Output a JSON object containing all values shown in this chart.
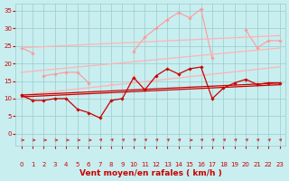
{
  "x": [
    0,
    1,
    2,
    3,
    4,
    5,
    6,
    7,
    8,
    9,
    10,
    11,
    12,
    13,
    14,
    15,
    16,
    17,
    18,
    19,
    20,
    21,
    22,
    23
  ],
  "series": [
    {
      "name": "light_drop",
      "color": "#FF9999",
      "lw": 0.8,
      "marker": "D",
      "markersize": 1.8,
      "y": [
        24.5,
        23.0,
        null,
        null,
        null,
        null,
        null,
        null,
        null,
        null,
        null,
        null,
        null,
        null,
        null,
        null,
        null,
        null,
        null,
        null,
        null,
        null,
        null,
        null
      ]
    },
    {
      "name": "light_rafales",
      "color": "#FF9999",
      "lw": 0.8,
      "marker": "D",
      "markersize": 1.8,
      "y": [
        null,
        null,
        16.5,
        17.0,
        17.5,
        17.5,
        14.5,
        null,
        null,
        null,
        23.5,
        27.5,
        30.0,
        32.5,
        34.5,
        33.0,
        35.5,
        21.5,
        null,
        null,
        29.5,
        24.5,
        26.5,
        26.5
      ]
    },
    {
      "name": "light_moyen",
      "color": "#FFB3B3",
      "lw": 0.8,
      "marker": "D",
      "markersize": 1.8,
      "y": [
        null,
        null,
        null,
        null,
        null,
        null,
        null,
        null,
        14.0,
        null,
        16.5,
        null,
        null,
        null,
        null,
        null,
        null,
        null,
        null,
        null,
        null,
        null,
        null,
        null
      ]
    },
    {
      "name": "trend_upper_light",
      "color": "#FFB3B3",
      "lw": 0.9,
      "marker": null,
      "markersize": 0,
      "y": [
        24.5,
        24.65,
        24.8,
        24.95,
        25.1,
        25.25,
        25.4,
        25.55,
        25.7,
        25.85,
        26.0,
        26.15,
        26.3,
        26.45,
        26.6,
        26.75,
        26.9,
        27.05,
        27.2,
        27.35,
        27.5,
        27.65,
        27.8,
        27.95
      ]
    },
    {
      "name": "trend_lower_light",
      "color": "#FFB3B3",
      "lw": 0.9,
      "marker": null,
      "markersize": 0,
      "y": [
        11.0,
        11.35,
        11.7,
        12.05,
        12.4,
        12.75,
        13.1,
        13.45,
        13.8,
        14.15,
        14.5,
        14.85,
        15.2,
        15.55,
        15.9,
        16.25,
        16.6,
        16.95,
        17.3,
        17.65,
        18.0,
        18.35,
        18.7,
        19.05
      ]
    },
    {
      "name": "trend_mid_light",
      "color": "#FFB3B3",
      "lw": 0.9,
      "marker": null,
      "markersize": 0,
      "y": [
        17.5,
        17.8,
        18.1,
        18.4,
        18.7,
        19.0,
        19.3,
        19.6,
        19.9,
        20.2,
        20.5,
        20.8,
        21.1,
        21.4,
        21.7,
        22.0,
        22.3,
        22.6,
        22.9,
        23.2,
        23.5,
        23.8,
        24.1,
        24.4
      ]
    },
    {
      "name": "dark_moyen",
      "color": "#CC0000",
      "lw": 0.9,
      "marker": "D",
      "markersize": 1.8,
      "y": [
        11.0,
        9.5,
        9.5,
        10.0,
        10.0,
        7.0,
        6.0,
        4.5,
        9.5,
        10.0,
        16.0,
        12.5,
        16.5,
        18.5,
        17.0,
        18.5,
        19.0,
        10.0,
        13.0,
        14.5,
        15.5,
        14.0,
        14.5,
        14.5
      ]
    },
    {
      "name": "trend_dark1",
      "color": "#CC0000",
      "lw": 0.9,
      "marker": null,
      "markersize": 0,
      "y": [
        11.0,
        11.15,
        11.3,
        11.45,
        11.6,
        11.75,
        11.9,
        12.05,
        12.2,
        12.35,
        12.5,
        12.65,
        12.8,
        12.95,
        13.1,
        13.25,
        13.4,
        13.55,
        13.7,
        13.85,
        14.0,
        14.15,
        14.3,
        14.45
      ]
    },
    {
      "name": "trend_dark2",
      "color": "#CC0000",
      "lw": 0.9,
      "marker": null,
      "markersize": 0,
      "y": [
        10.5,
        10.65,
        10.8,
        10.95,
        11.1,
        11.25,
        11.4,
        11.55,
        11.7,
        11.85,
        12.0,
        12.15,
        12.3,
        12.45,
        12.6,
        12.75,
        12.9,
        13.05,
        13.2,
        13.35,
        13.5,
        13.65,
        13.8,
        13.95
      ]
    }
  ],
  "arrows": [
    {
      "x": 0,
      "flat": true
    },
    {
      "x": 1,
      "flat": true
    },
    {
      "x": 2,
      "flat": true
    },
    {
      "x": 3,
      "flat": true
    },
    {
      "x": 4,
      "flat": true
    },
    {
      "x": 5,
      "flat": true
    },
    {
      "x": 6,
      "flat": true
    },
    {
      "x": 7,
      "flat": false
    },
    {
      "x": 8,
      "flat": false
    },
    {
      "x": 9,
      "flat": false
    },
    {
      "x": 10,
      "flat": false
    },
    {
      "x": 11,
      "flat": false
    },
    {
      "x": 12,
      "flat": false
    },
    {
      "x": 13,
      "flat": false
    },
    {
      "x": 14,
      "flat": false
    },
    {
      "x": 15,
      "flat": true
    },
    {
      "x": 16,
      "flat": false
    },
    {
      "x": 17,
      "flat": false
    },
    {
      "x": 18,
      "flat": false
    },
    {
      "x": 19,
      "flat": false
    },
    {
      "x": 20,
      "flat": false
    },
    {
      "x": 21,
      "flat": false
    },
    {
      "x": 22,
      "flat": false
    },
    {
      "x": 23,
      "flat": false
    }
  ],
  "xlabel": "Vent moyen/en rafales ( km/h )",
  "xlabel_color": "#CC0000",
  "xlabel_fontsize": 6.5,
  "yticks": [
    0,
    5,
    10,
    15,
    20,
    25,
    30,
    35
  ],
  "xticks": [
    0,
    1,
    2,
    3,
    4,
    5,
    6,
    7,
    8,
    9,
    10,
    11,
    12,
    13,
    14,
    15,
    16,
    17,
    18,
    19,
    20,
    21,
    22,
    23
  ],
  "xlim": [
    -0.5,
    23.5
  ],
  "ylim": [
    0,
    37
  ],
  "bg_color": "#C8EEF0",
  "grid_color": "#99CCCC",
  "tick_color": "#CC0000",
  "tick_fontsize": 5.0,
  "arrow_color_flat": "#CC3333",
  "arrow_color_up": "#CC3333"
}
